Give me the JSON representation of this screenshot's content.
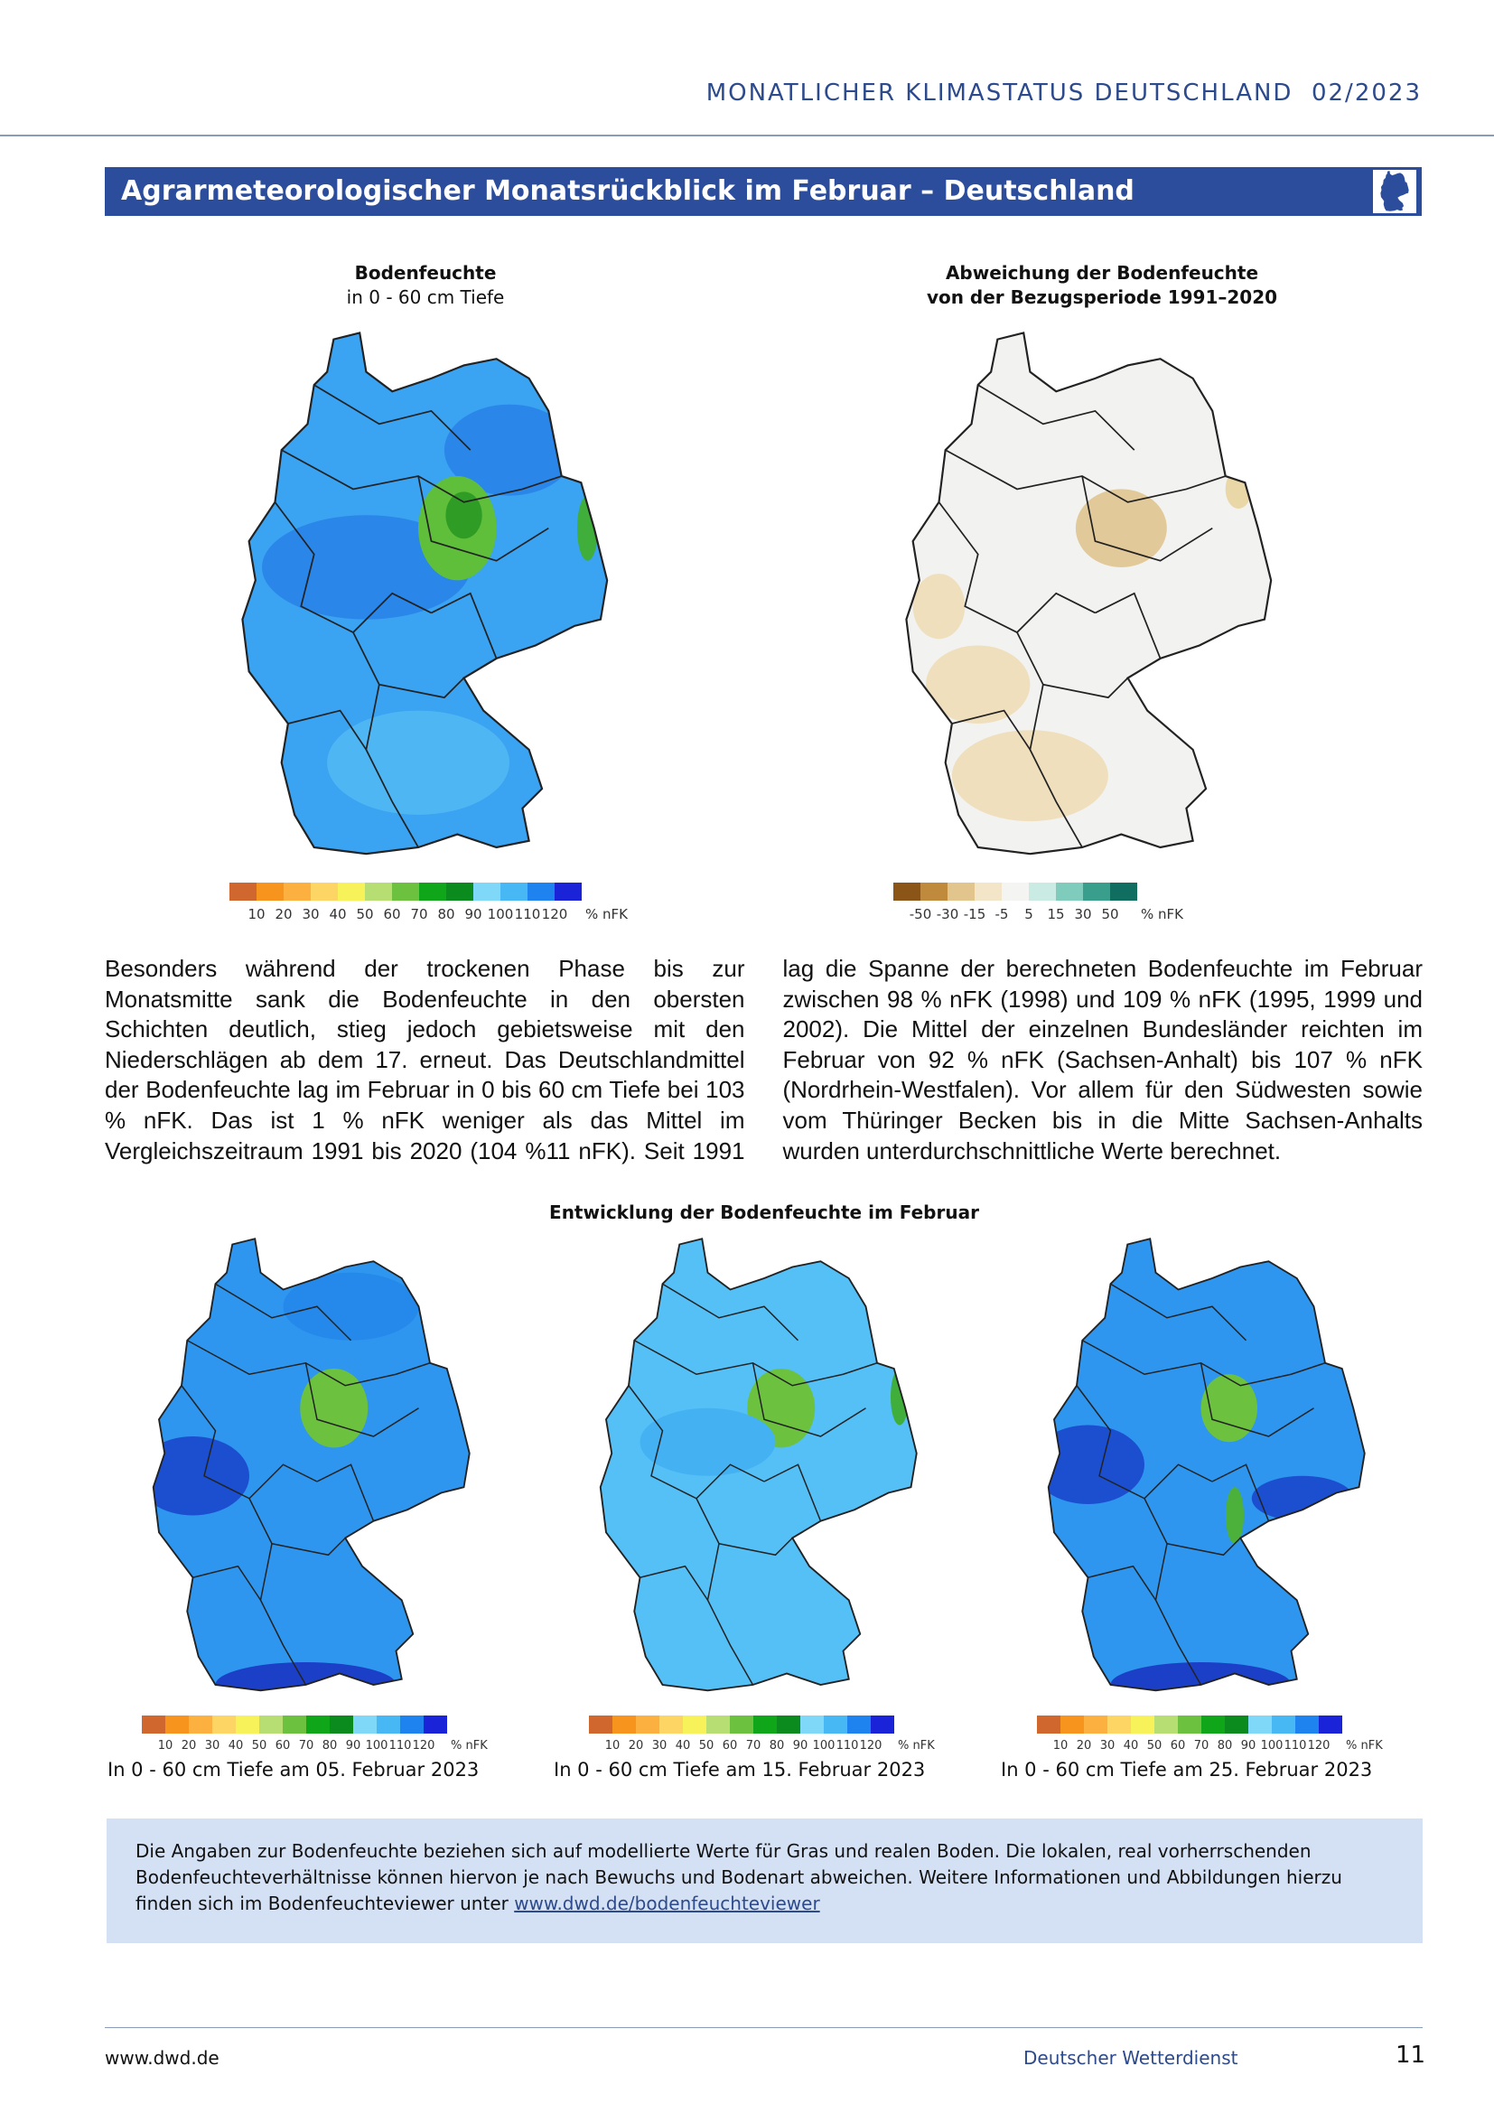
{
  "header": {
    "title": "MONATLICHER KLIMASTATUS DEUTSCHLAND  02/2023"
  },
  "section": {
    "title": "Agrarmeteorologischer Monatsrückblick im Februar – Deutschland"
  },
  "figures": [
    {
      "title": "Bodenfeuchte",
      "subtitle": "in 0 - 60 cm Tiefe",
      "legend": [
        "10",
        "20",
        "30",
        "40",
        "50",
        "60",
        "70",
        "80",
        "90",
        "100",
        "110",
        "120",
        "% nFK"
      ]
    },
    {
      "title": "Abweichung der Bodenfeuchte",
      "subtitle": "von der Bezugsperiode 1991–2020",
      "legend": [
        "-50",
        "-30",
        "-15",
        "-5",
        "5",
        "15",
        "30",
        "50",
        "% nFK"
      ]
    }
  ],
  "body": {
    "text": "Besonders während der trockenen Phase bis zur Monatsmitte sank die Bodenfeuchte in den obersten Schichten deutlich, stieg jedoch gebietsweise mit den Niederschlägen ab dem 17. erneut. Das Deutschlandmittel der Bodenfeuchte lag im Februar in 0 bis 60 cm Tiefe bei 103 % nFK. Das ist 1 % nFK weniger als das Mittel im Vergleichszeitraum 1991 bis 2020 (104 %11 nFK). Seit 1991 lag die Spanne der berechneten Bodenfeuchte im Februar zwischen 98 % nFK (1998) und 109 % nFK (1995, 1999 und 2002). Die Mittel der einzelnen Bundesländer reichten im Februar von 92 % nFK (Sachsen-Anhalt) bis 107 % nFK (Nordrhein-Westfalen). Vor allem für den Südwesten sowie vom Thüringer Becken bis in die Mitte Sachsen-Anhalts wurden unterdurchschnittliche Werte berechnet."
  },
  "timeline": {
    "title": "Entwicklung der Bodenfeuchte im Februar",
    "legend": [
      "10",
      "20",
      "30",
      "40",
      "50",
      "60",
      "70",
      "80",
      "90",
      "100",
      "110",
      "120",
      "% nFK"
    ],
    "captions": [
      "In 0 - 60 cm Tiefe am 05. Februar 2023",
      "In 0 - 60 cm Tiefe am 15. Februar 2023",
      "In 0 - 60 cm Tiefe am 25. Februar 2023"
    ]
  },
  "note": {
    "text": "Die Angaben zur Bodenfeuchte beziehen sich auf modellierte Werte für Gras und realen Boden. Die lokalen, real vorherrschenden Bodenfeuchteverhältnisse können hiervon je nach Bewuchs und Bodenart abweichen. Weitere Informationen und Abbildungen hierzu finden sich im Bodenfeuchteviewer unter",
    "link": "www.dwd.de/bodenfeuchteviewer"
  },
  "footer": {
    "url": "www.dwd.de",
    "org": "Deutscher Wetterdienst",
    "page": "11"
  }
}
